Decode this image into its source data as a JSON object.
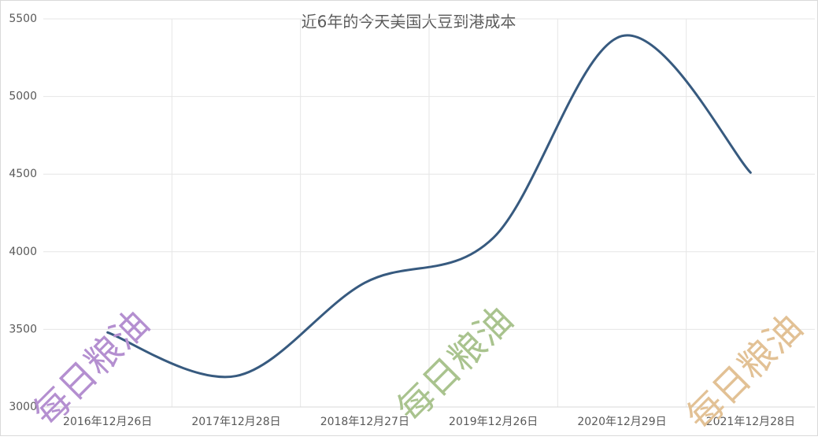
{
  "chart_data": {
    "type": "line",
    "title": "近6年的今天美国大豆到港成本",
    "categories": [
      "2016年12月26日",
      "2017年12月28日",
      "2018年12月27日",
      "2019年12月26日",
      "2020年12月29日",
      "2021年12月28日"
    ],
    "series": [
      {
        "name": "到港成本",
        "color": "#375a7f",
        "values": [
          3480,
          3200,
          3800,
          4090,
          5390,
          4510
        ]
      }
    ],
    "ylim": [
      3000,
      5500
    ],
    "yticks": [
      3000,
      3500,
      4000,
      4500,
      5000,
      5500
    ],
    "grid": true,
    "smooth": true,
    "watermarks": [
      {
        "text": "每日粮油",
        "color": "#b48fd0"
      },
      {
        "text": "每日粮油",
        "color": "#a9c38e"
      },
      {
        "text": "每日粮油",
        "color": "#e2c195"
      }
    ]
  }
}
